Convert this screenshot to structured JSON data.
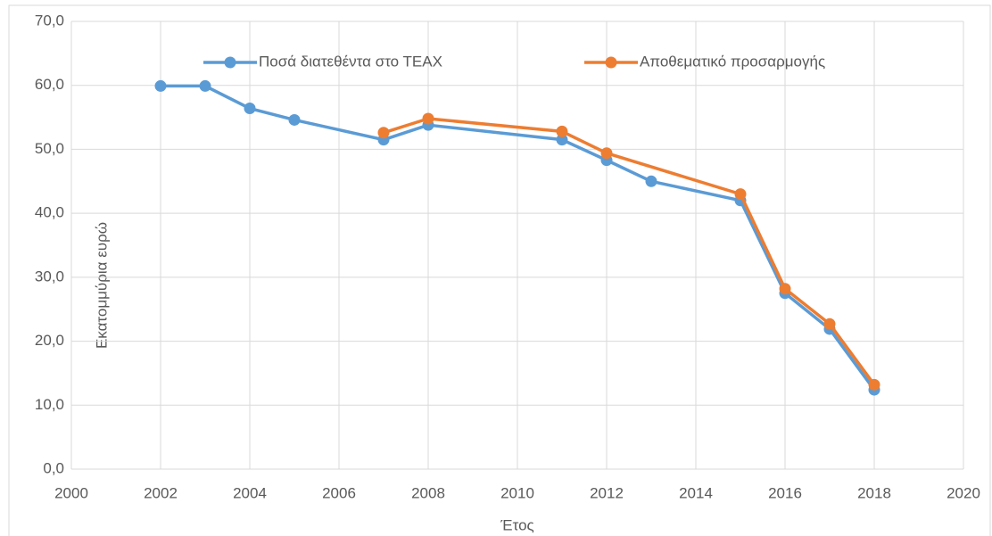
{
  "chart_data": {
    "type": "line",
    "ylabel": "Εκατομμύρια ευρώ",
    "xlabel": "Έτος",
    "xlim": [
      2000,
      2020
    ],
    "xticks": [
      2000,
      2002,
      2004,
      2006,
      2008,
      2010,
      2012,
      2014,
      2016,
      2018,
      2020
    ],
    "ylim": [
      0,
      70
    ],
    "yticks": [
      {
        "value": 0,
        "label": "0,0"
      },
      {
        "value": 10,
        "label": "10,0"
      },
      {
        "value": 20,
        "label": "20,0"
      },
      {
        "value": 30,
        "label": "30,0"
      },
      {
        "value": 40,
        "label": "40,0"
      },
      {
        "value": 50,
        "label": "50,0"
      },
      {
        "value": 60,
        "label": "60,0"
      },
      {
        "value": 70,
        "label": "70,0"
      }
    ],
    "grid": true,
    "legend": "top",
    "series": [
      {
        "name": "Ποσά διατεθέντα στο ΤΕΑΧ",
        "color": "#5b9bd5",
        "x": [
          2002,
          2003,
          2004,
          2005,
          2007,
          2008,
          2011,
          2012,
          2013,
          2015,
          2016,
          2017,
          2018
        ],
        "values": [
          59.9,
          59.9,
          56.4,
          54.6,
          51.5,
          53.8,
          51.5,
          48.3,
          45.0,
          42.0,
          27.5,
          21.9,
          12.4
        ]
      },
      {
        "name": "Αποθεματικό προσαρμογής",
        "color": "#ed7d31",
        "x": [
          2007,
          2008,
          2011,
          2012,
          2015,
          2016,
          2017,
          2018
        ],
        "values": [
          52.6,
          54.8,
          52.8,
          49.4,
          43.0,
          28.2,
          22.7,
          13.2
        ]
      }
    ]
  }
}
